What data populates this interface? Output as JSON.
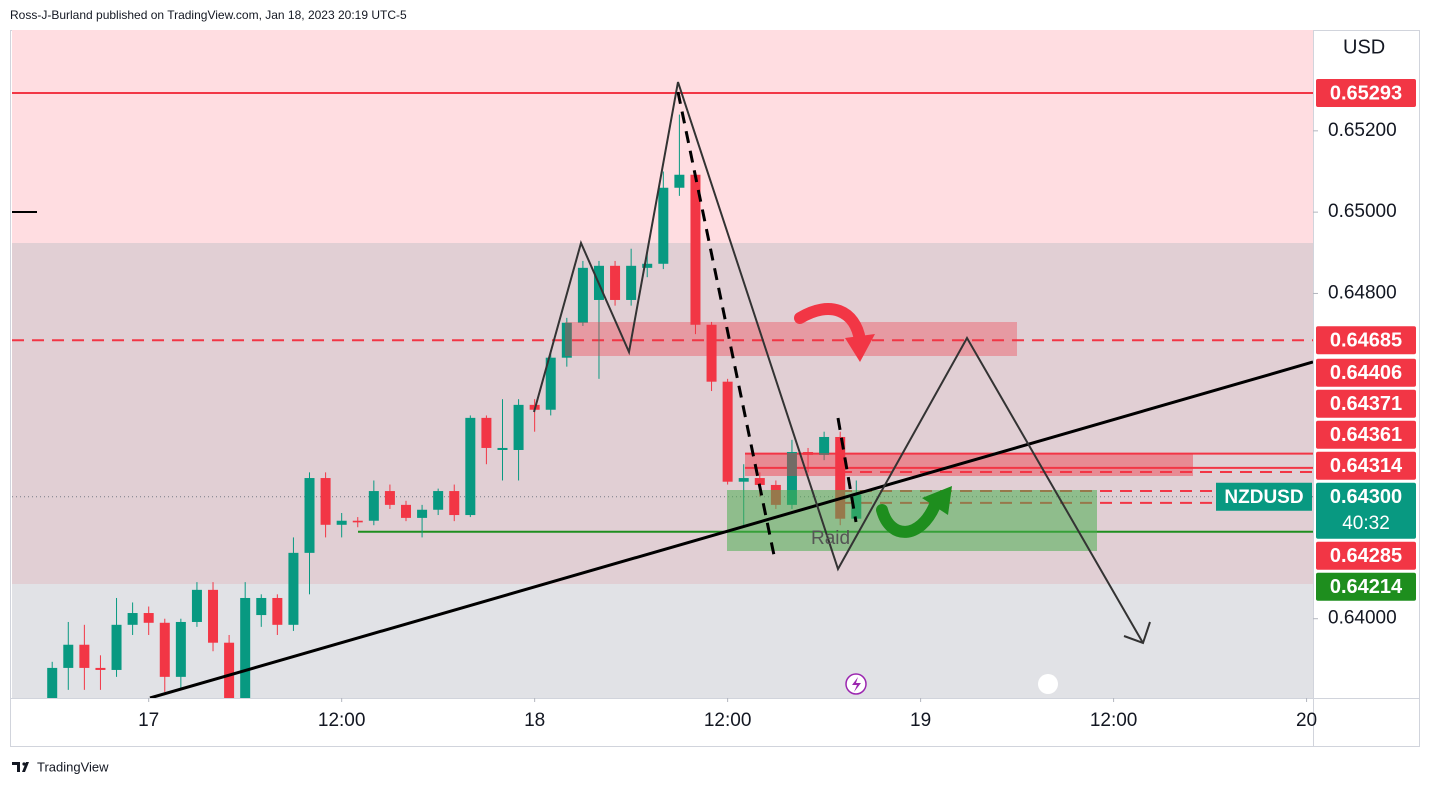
{
  "header": {
    "text": "Ross-J-Burland published on TradingView.com, Jan 18, 2023 20:19 UTC-5"
  },
  "chart_data": {
    "type": "candlestick",
    "x": [
      -6,
      -5,
      -4,
      -3,
      -2,
      -1,
      0,
      1,
      2,
      3,
      4,
      5,
      6,
      7,
      8,
      9,
      10,
      11,
      12,
      13,
      14,
      15,
      16,
      17,
      18,
      19,
      20,
      21,
      22,
      23,
      24,
      25,
      26,
      27,
      28,
      29,
      30,
      31,
      32,
      33,
      34,
      35,
      36,
      37,
      38,
      39,
      40,
      41,
      42,
      43,
      44
    ],
    "open": [
      0.63805,
      0.63879,
      0.63936,
      0.63879,
      0.63874,
      0.63985,
      0.64014,
      0.6399,
      0.63857,
      0.63992,
      0.64071,
      0.63941,
      0.63805,
      0.64009,
      0.64051,
      0.63985,
      0.64162,
      0.64346,
      0.64231,
      0.64241,
      0.64241,
      0.64314,
      0.6428,
      0.64248,
      0.64268,
      0.64314,
      0.64255,
      0.64494,
      0.64415,
      0.64415,
      0.64526,
      0.64514,
      0.64642,
      0.64728,
      0.64784,
      0.64868,
      0.64784,
      0.64863,
      0.64873,
      0.6506,
      0.65092,
      0.64723,
      0.64583,
      0.64337,
      0.64346,
      0.64329,
      0.6428,
      0.6441,
      0.64403,
      0.64447,
      0.64246
    ],
    "high": [
      0.63894,
      0.63992,
      0.63985,
      0.6391,
      0.64051,
      0.6404,
      0.6403,
      0.64,
      0.64,
      0.6409,
      0.6409,
      0.6396,
      0.6409,
      0.6406,
      0.6406,
      0.642,
      0.6436,
      0.6436,
      0.6426,
      0.6425,
      0.6434,
      0.6433,
      0.6429,
      0.6428,
      0.6432,
      0.6433,
      0.645,
      0.645,
      0.6454,
      0.6454,
      0.6454,
      0.6466,
      0.6474,
      0.6488,
      0.6488,
      0.6488,
      0.6491,
      0.649,
      0.651,
      0.6524,
      0.651,
      0.6473,
      0.6459,
      0.6438,
      0.6436,
      0.6434,
      0.6444,
      0.6442,
      0.6446,
      0.6446,
      0.6434
    ],
    "low": [
      0.63805,
      0.63825,
      0.63825,
      0.63825,
      0.63857,
      0.6396,
      0.6396,
      0.6382,
      0.6383,
      0.6398,
      0.6392,
      0.6379,
      0.6379,
      0.6398,
      0.6396,
      0.6397,
      0.6406,
      0.642,
      0.642,
      0.64225,
      0.6423,
      0.6427,
      0.6424,
      0.642,
      0.64255,
      0.6424,
      0.6425,
      0.6438,
      0.6434,
      0.6434,
      0.6446,
      0.645,
      0.6462,
      0.6472,
      0.6459,
      0.6477,
      0.6477,
      0.6484,
      0.6486,
      0.6504,
      0.647,
      0.6456,
      0.6433,
      0.6423,
      0.643,
      0.6427,
      0.6427,
      0.6436,
      0.6439,
      0.6423,
      0.6424
    ],
    "close": [
      0.63879,
      0.63936,
      0.63879,
      0.63874,
      0.63985,
      0.64014,
      0.6399,
      0.63857,
      0.63992,
      0.64071,
      0.63941,
      0.63805,
      0.64051,
      0.64051,
      0.63985,
      0.64162,
      0.64346,
      0.64231,
      0.64241,
      0.64237,
      0.64314,
      0.6428,
      0.64248,
      0.64268,
      0.64314,
      0.64255,
      0.64494,
      0.6442,
      0.6442,
      0.64526,
      0.64514,
      0.64642,
      0.64728,
      0.64863,
      0.64868,
      0.64784,
      0.64868,
      0.64873,
      0.6506,
      0.65092,
      0.64723,
      0.64583,
      0.64337,
      0.64346,
      0.64329,
      0.6428,
      0.6441,
      0.64403,
      0.64447,
      0.64246,
      0.64305
    ],
    "up_color": "#089981",
    "down_color": "#f23645",
    "xlim": [
      -8.5,
      72.4
    ],
    "xticks": [
      {
        "value": 0,
        "label": "17"
      },
      {
        "value": 12,
        "label": "12:00"
      },
      {
        "value": 24,
        "label": "18"
      },
      {
        "value": 36,
        "label": "12:00"
      },
      {
        "value": 48,
        "label": "19"
      },
      {
        "value": 60,
        "label": "12:00"
      },
      {
        "value": 72,
        "label": "20"
      }
    ],
    "ylim": [
      0.63805,
      0.65448
    ],
    "yticks": [
      {
        "value": 0.652,
        "label": "0.65200"
      },
      {
        "value": 0.65,
        "label": "0.65000"
      },
      {
        "value": 0.648,
        "label": "0.64800"
      },
      {
        "value": 0.64,
        "label": "0.64000"
      }
    ],
    "y_axis_label": "USD",
    "price_labels": [
      {
        "value": 0.65293,
        "label": "0.65293",
        "color": "#f23645",
        "line": "solid"
      },
      {
        "value": 0.64685,
        "label": "0.64685",
        "color": "#f23645",
        "line": "dashed"
      },
      {
        "value": 0.64406,
        "label": "0.64406",
        "color": "#f23645",
        "line": "solid"
      },
      {
        "value": 0.64371,
        "label": "0.64371",
        "color": "#f23645",
        "line": "solid"
      },
      {
        "value": 0.64361,
        "label": "0.64361",
        "color": "#f23645",
        "line": "dashed"
      },
      {
        "value": 0.64314,
        "label": "0.64314",
        "color": "#f23645",
        "line": "dashed"
      },
      {
        "value": 0.643,
        "label": "0.64300",
        "color": "#089981",
        "line": "dotted",
        "symbol": "NZDUSD",
        "countdown": "40:32"
      },
      {
        "value": 0.64285,
        "label": "0.64285",
        "color": "#f23645",
        "line": "dashed"
      },
      {
        "value": 0.64214,
        "label": "0.64214",
        "color": "#1e8e1e",
        "line": "solid"
      }
    ],
    "annotations": [
      "Raid"
    ]
  },
  "footer": {
    "brand": "TradingView"
  }
}
